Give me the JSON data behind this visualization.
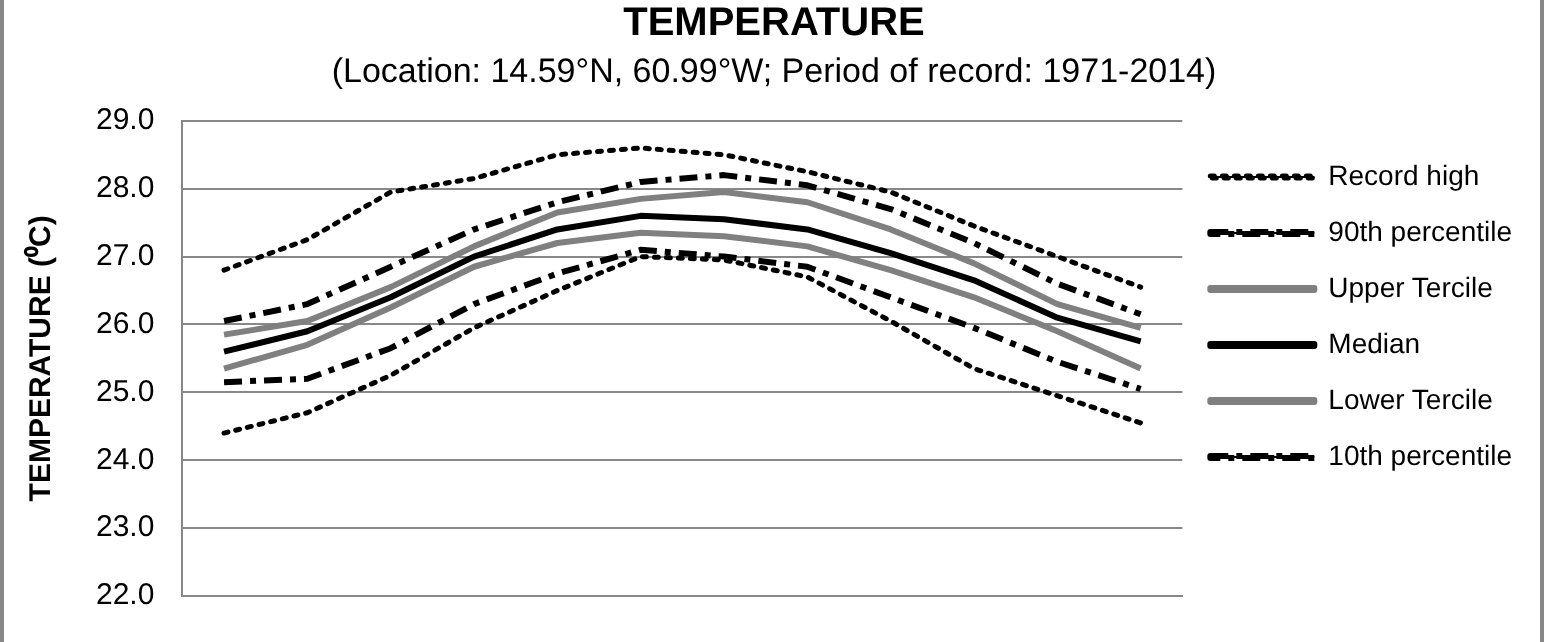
{
  "chart_data": {
    "type": "line",
    "title": "TEMPERATURE",
    "subtitle": "(Location: 14.59°N, 60.99°W; Period of record: 1971-2014)",
    "ylabel": "TEMPERATURE (⁰C)",
    "categories": [
      null,
      null,
      null,
      null,
      null,
      null,
      null,
      null,
      null,
      null,
      null,
      null
    ],
    "series": [
      {
        "name": "Record high",
        "color": "#000000",
        "line_style": "dotted",
        "values": [
          26.8,
          27.25,
          27.95,
          28.15,
          28.5,
          28.6,
          28.5,
          28.25,
          27.95,
          27.45,
          27.0,
          26.55
        ]
      },
      {
        "name": "90th percentile",
        "color": "#000000",
        "line_style": "dashed",
        "values": [
          26.05,
          26.3,
          26.85,
          27.4,
          27.8,
          28.1,
          28.2,
          28.05,
          27.7,
          27.2,
          26.6,
          26.15
        ]
      },
      {
        "name": "Upper Tercile",
        "color": "#808080",
        "line_style": "solid",
        "values": [
          25.85,
          26.05,
          26.55,
          27.15,
          27.65,
          27.85,
          27.95,
          27.8,
          27.4,
          26.9,
          26.3,
          25.95
        ]
      },
      {
        "name": "Median",
        "color": "#000000",
        "line_style": "solid",
        "values": [
          25.6,
          25.9,
          26.4,
          27.0,
          27.4,
          27.6,
          27.55,
          27.4,
          27.05,
          26.65,
          26.1,
          25.75
        ]
      },
      {
        "name": "Lower Tercile",
        "color": "#808080",
        "line_style": "solid",
        "values": [
          25.35,
          25.7,
          26.25,
          26.85,
          27.2,
          27.35,
          27.3,
          27.15,
          26.8,
          26.4,
          25.9,
          25.35
        ]
      },
      {
        "name": "10th percentile",
        "color": "#000000",
        "line_style": "dashed",
        "values": [
          25.15,
          25.2,
          25.65,
          26.3,
          26.75,
          27.1,
          27.0,
          26.85,
          26.4,
          25.95,
          25.45,
          25.05
        ]
      },
      {
        "color": "#000000",
        "line_style": "dotted",
        "values": [
          24.4,
          24.7,
          25.25,
          25.95,
          26.5,
          27.0,
          26.95,
          26.7,
          26.05,
          25.35,
          24.95,
          24.55
        ]
      }
    ],
    "ylim": [
      22,
      29
    ],
    "yticks": [
      {
        "value": 22,
        "label": "22.0"
      },
      {
        "value": 23,
        "label": "23.0"
      },
      {
        "value": 24,
        "label": "24.0"
      },
      {
        "value": 25,
        "label": "25.0"
      },
      {
        "value": 26,
        "label": "26.0"
      },
      {
        "value": 27,
        "label": "27.0"
      },
      {
        "value": 28,
        "label": "28.0"
      },
      {
        "value": 29,
        "label": "29.0"
      }
    ],
    "grid": "y",
    "legend": "right",
    "marker": "none"
  }
}
